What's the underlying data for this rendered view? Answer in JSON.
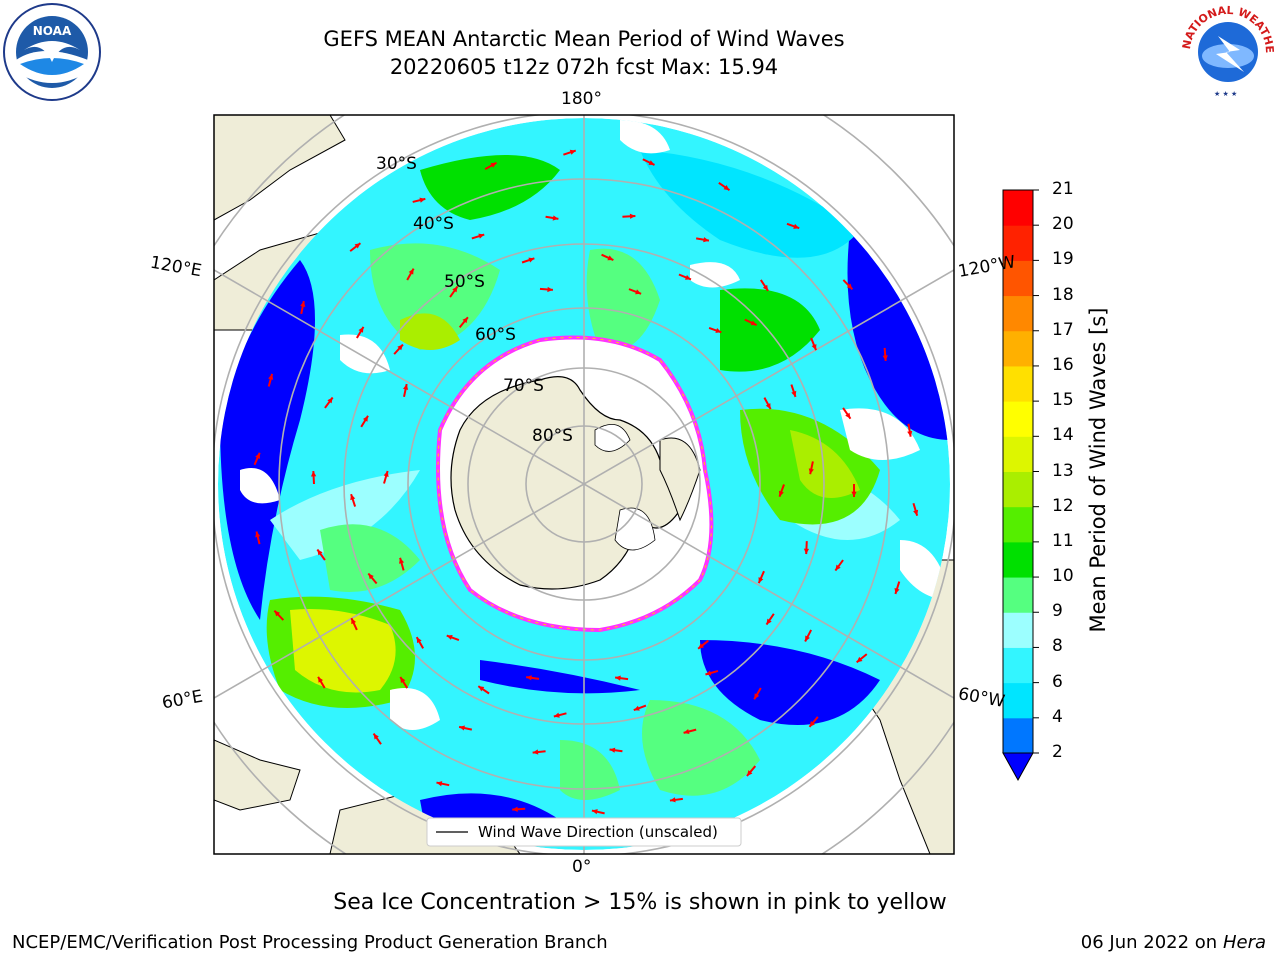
{
  "header": {
    "title_line1": "GEFS MEAN Antarctic Mean Period of Wind Waves",
    "title_line2": "20220605 t12z 072h fcst   Max: 15.94"
  },
  "logos": {
    "left": "NOAA",
    "right": "NATIONAL WEATHER SERVICE"
  },
  "map": {
    "lon_labels": {
      "top": "180°",
      "bottom": "0°",
      "left_upper": "120°E",
      "left_lower": "60°E",
      "right_upper": "120°W",
      "right_lower": "60°W"
    },
    "lat_labels": [
      "30°S",
      "40°S",
      "50°S",
      "60°S",
      "70°S",
      "80°S"
    ],
    "legend_text": "Wind Wave Direction (unscaled)",
    "arrow_color": "#ff0000",
    "land_color": "#efedd8",
    "ice_color": "#ffffff",
    "ice_edge_color": "#ff33ff"
  },
  "colorbar": {
    "label": "Mean Period of Wind Waves [s]",
    "ticks": [
      "2",
      "4",
      "6",
      "8",
      "9",
      "10",
      "11",
      "12",
      "13",
      "14",
      "15",
      "16",
      "17",
      "18",
      "19",
      "20",
      "21"
    ],
    "colors": [
      "#0000ff",
      "#0077ff",
      "#00e5ff",
      "#33f5ff",
      "#9cffff",
      "#55ff80",
      "#00e000",
      "#55ee00",
      "#aaee00",
      "#ddf600",
      "#ffff00",
      "#ffe000",
      "#ffb000",
      "#ff8800",
      "#ff5500",
      "#ff2200",
      "#ff0000"
    ]
  },
  "caption": "Sea Ice Concentration > 15% is shown in pink to yellow",
  "footer": {
    "left": "NCEP/EMC/Verification Post Processing Product Generation Branch",
    "right_date": "06 Jun 2022 on",
    "right_host": "Hera"
  }
}
